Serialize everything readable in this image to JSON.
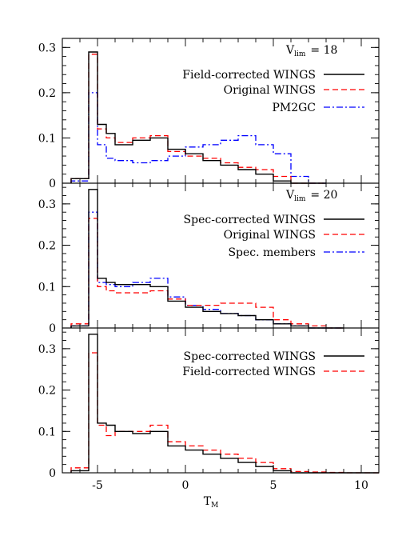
{
  "xlabel": "T",
  "xlabel_sub": "M",
  "xlim": [
    -7,
    11
  ],
  "xticks": [
    -5,
    0,
    5,
    10
  ],
  "chart_data": [
    {
      "type": "step",
      "annotation": {
        "text": "V",
        "sub": "lim",
        "rest": "= 18"
      },
      "ylim": [
        0,
        0.32
      ],
      "yticks": [
        0,
        0.1,
        0.2,
        0.3
      ],
      "ytick_labels": [
        "0",
        "0.1",
        "0.2",
        "0.3"
      ],
      "bin_edges": [
        -6.5,
        -5.5,
        -5.0,
        -4.5,
        -4.0,
        -3.0,
        -2.0,
        -1.0,
        0.0,
        1.0,
        2.0,
        3.0,
        4.0,
        5.0,
        6.0,
        7.0,
        8.0
      ],
      "series": [
        {
          "name": "Field-corrected WINGS",
          "color": "#000000",
          "dash": "solid",
          "values": [
            0.01,
            0.29,
            0.13,
            0.11,
            0.085,
            0.095,
            0.1,
            0.075,
            0.065,
            0.05,
            0.04,
            0.03,
            0.02,
            0.005,
            0.0,
            0.0
          ]
        },
        {
          "name": "Original WINGS",
          "color": "#ff0000",
          "dash": "dash",
          "values": [
            0.01,
            0.285,
            0.12,
            0.1,
            0.09,
            0.1,
            0.105,
            0.07,
            0.06,
            0.055,
            0.045,
            0.035,
            0.03,
            0.015,
            0.0,
            0.0
          ]
        },
        {
          "name": "PM2GC",
          "color": "#0000ff",
          "dash": "dashdot",
          "values": [
            0.005,
            0.2,
            0.085,
            0.055,
            0.05,
            0.045,
            0.05,
            0.06,
            0.08,
            0.085,
            0.095,
            0.105,
            0.085,
            0.065,
            0.015,
            0.0
          ]
        }
      ]
    },
    {
      "type": "step",
      "annotation": {
        "text": "V",
        "sub": "lim",
        "rest": "= 20"
      },
      "ylim": [
        0,
        0.35
      ],
      "yticks": [
        0,
        0.1,
        0.2,
        0.3
      ],
      "ytick_labels": [
        "0",
        "0.1",
        "0.2",
        "0.3"
      ],
      "bin_edges": [
        -6.5,
        -5.5,
        -5.0,
        -4.5,
        -4.0,
        -3.0,
        -2.0,
        -1.0,
        0.0,
        1.0,
        2.0,
        3.0,
        4.0,
        5.0,
        6.0,
        7.0,
        8.0,
        9.0
      ],
      "series": [
        {
          "name": "Spec-corrected WINGS",
          "color": "#000000",
          "dash": "solid",
          "values": [
            0.005,
            0.335,
            0.12,
            0.11,
            0.105,
            0.105,
            0.1,
            0.065,
            0.05,
            0.04,
            0.035,
            0.03,
            0.02,
            0.01,
            0.005,
            0.0,
            0.0
          ]
        },
        {
          "name": "Original WINGS",
          "color": "#ff0000",
          "dash": "dash",
          "values": [
            0.01,
            0.265,
            0.1,
            0.09,
            0.085,
            0.085,
            0.09,
            0.07,
            0.055,
            0.055,
            0.06,
            0.06,
            0.05,
            0.02,
            0.01,
            0.005,
            0.0
          ]
        },
        {
          "name": "Spec. members",
          "color": "#0000ff",
          "dash": "dashdot",
          "values": [
            0.005,
            0.28,
            0.11,
            0.105,
            0.1,
            0.11,
            0.12,
            0.075,
            0.055,
            0.045,
            0.035,
            0.03,
            0.02,
            0.01,
            0.005,
            0.0,
            0.0
          ]
        }
      ]
    },
    {
      "type": "step",
      "ylim": [
        0,
        0.35
      ],
      "yticks": [
        0,
        0.1,
        0.2,
        0.3
      ],
      "ytick_labels": [
        "0",
        "0.1",
        "0.2",
        "0.3"
      ],
      "bin_edges": [
        -6.5,
        -5.5,
        -5.0,
        -4.5,
        -4.0,
        -3.0,
        -2.0,
        -1.0,
        0.0,
        1.0,
        2.0,
        3.0,
        4.0,
        5.0,
        6.0,
        7.0,
        8.0,
        9.0,
        10.0,
        11.0
      ],
      "series": [
        {
          "name": "Spec-corrected WINGS",
          "color": "#000000",
          "dash": "solid",
          "values": [
            0.005,
            0.335,
            0.12,
            0.115,
            0.1,
            0.095,
            0.1,
            0.065,
            0.055,
            0.045,
            0.035,
            0.025,
            0.015,
            0.005,
            0.0,
            0.0,
            0.0,
            0.0,
            0.0
          ]
        },
        {
          "name": "Field-corrected WINGS",
          "color": "#ff0000",
          "dash": "dash",
          "values": [
            0.012,
            0.29,
            0.115,
            0.09,
            0.1,
            0.1,
            0.115,
            0.075,
            0.065,
            0.055,
            0.045,
            0.035,
            0.025,
            0.01,
            0.003,
            0.002,
            0.001,
            0.0,
            0.0
          ]
        }
      ]
    }
  ]
}
